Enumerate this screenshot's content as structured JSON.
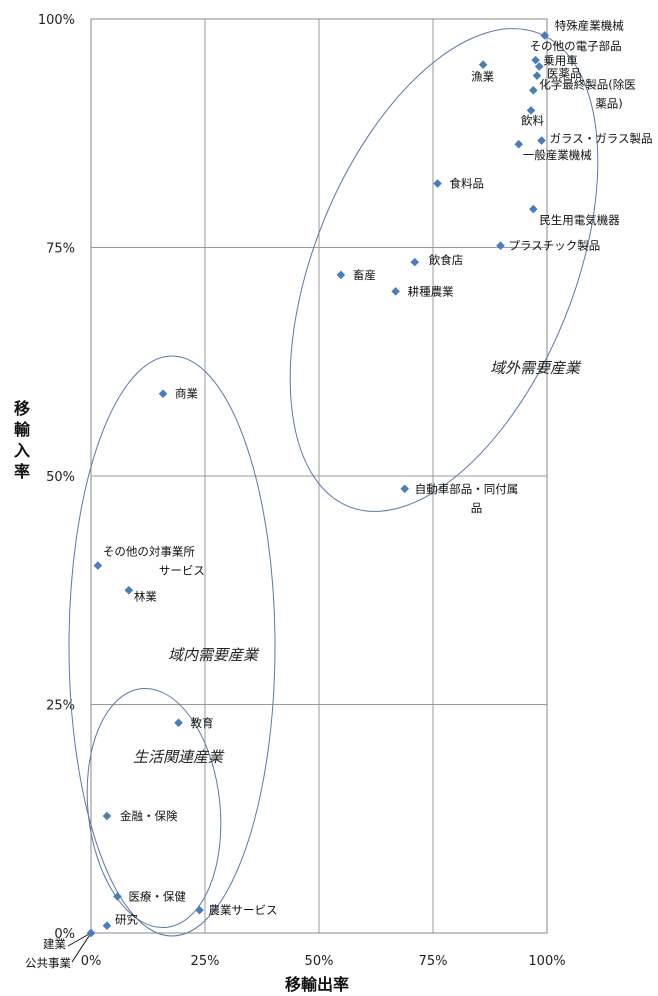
{
  "chart_data": {
    "type": "scatter",
    "xlabel": "移輸出率",
    "ylabel": "移輸入率",
    "xlim": [
      0,
      100
    ],
    "ylim": [
      0,
      100
    ],
    "x_ticks": [
      "0%",
      "25%",
      "50%",
      "75%",
      "100%"
    ],
    "y_ticks": [
      "0%",
      "25%",
      "50%",
      "75%",
      "100%"
    ],
    "grid": true,
    "marker_color": "#4a7ebb",
    "ellipse_color": "#5a79a6",
    "points": [
      {
        "label": "特殊産業機械",
        "x": 99.5,
        "y": 98.2
      },
      {
        "label": "その他の電子部品",
        "x": 97.5,
        "y": 95.5
      },
      {
        "label": "乗用車",
        "x": 98.3,
        "y": 94.8
      },
      {
        "label": "医薬品",
        "x": 97.8,
        "y": 93.8
      },
      {
        "label": "化学最終製品(除医薬品)",
        "x": 97.0,
        "y": 92.2
      },
      {
        "label": "漁業",
        "x": 86.0,
        "y": 95.0
      },
      {
        "label": "飲料",
        "x": 96.5,
        "y": 90.0
      },
      {
        "label": "ガラス・ガラス製品",
        "x": 98.8,
        "y": 86.7
      },
      {
        "label": "一般産業機械",
        "x": 93.8,
        "y": 86.3
      },
      {
        "label": "食料品",
        "x": 76.0,
        "y": 82.0
      },
      {
        "label": "民生用電気機器",
        "x": 97.0,
        "y": 79.2
      },
      {
        "label": "プラスチック製品",
        "x": 89.8,
        "y": 75.2
      },
      {
        "label": "飲食店",
        "x": 71.0,
        "y": 73.4
      },
      {
        "label": "畜産",
        "x": 54.8,
        "y": 72.0
      },
      {
        "label": "耕種農業",
        "x": 66.8,
        "y": 70.2
      },
      {
        "label": "自動車部品・同付属品",
        "x": 68.8,
        "y": 48.6
      },
      {
        "label": "商業",
        "x": 15.8,
        "y": 59.0
      },
      {
        "label": "その他の対事業所サービス",
        "x": 1.5,
        "y": 40.2
      },
      {
        "label": "林業",
        "x": 8.3,
        "y": 37.5
      },
      {
        "label": "教育",
        "x": 19.2,
        "y": 23.0
      },
      {
        "label": "金融・保険",
        "x": 3.5,
        "y": 12.8
      },
      {
        "label": "医療・保健",
        "x": 5.8,
        "y": 4.0
      },
      {
        "label": "農業サービス",
        "x": 23.8,
        "y": 2.5
      },
      {
        "label": "研究",
        "x": 3.5,
        "y": 0.8
      },
      {
        "label": "建業",
        "x": 0.0,
        "y": 0.0
      },
      {
        "label": "公共事業",
        "x": 0.0,
        "y": 0.0
      }
    ],
    "groups": [
      {
        "label": "域外需要産業"
      },
      {
        "label": "域内需要産業"
      },
      {
        "label": "生活関連産業"
      }
    ]
  }
}
